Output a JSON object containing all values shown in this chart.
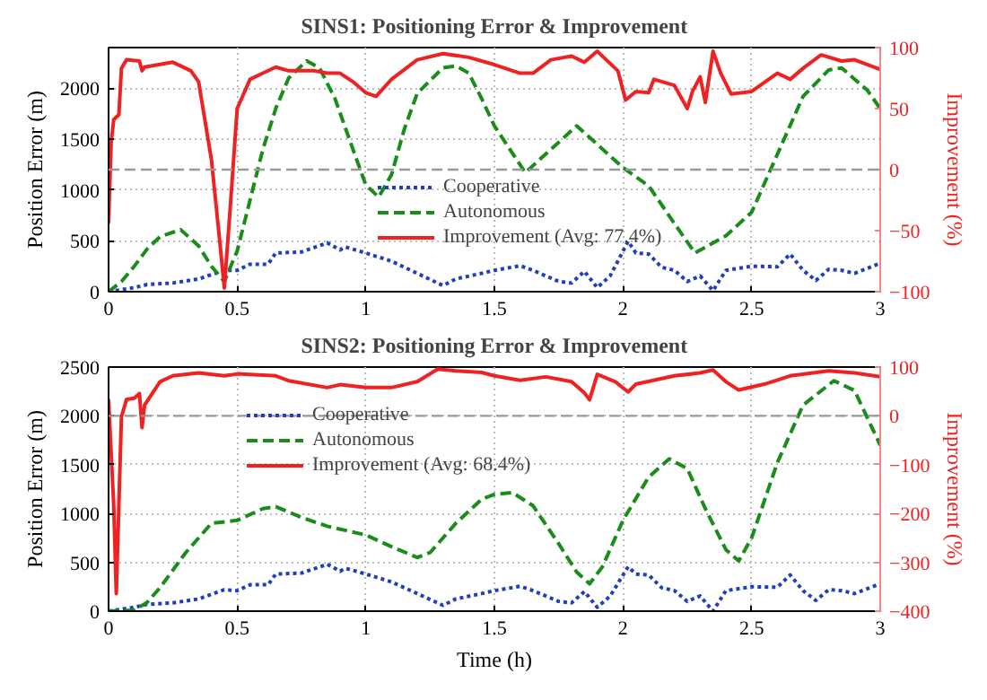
{
  "chart_data": [
    {
      "type": "line",
      "title": "SINS1: Positioning Error & Improvement",
      "ylabel": "Position Error (m)",
      "y2label": "Improvement (%)",
      "xlim": [
        0,
        3
      ],
      "xticks": [
        0,
        0.5,
        1,
        1.5,
        2,
        2.5,
        3
      ],
      "ylim": [
        0,
        2400
      ],
      "yticks": [
        0,
        500,
        1000,
        1500,
        2000
      ],
      "y2lim": [
        -100,
        100
      ],
      "y2ticks": [
        -100,
        -50,
        0,
        50,
        100
      ],
      "grid": true,
      "legend": "center",
      "ref_lines": [
        {
          "axis": "y2",
          "value": 0,
          "color": "#999999",
          "line_style": "dashed"
        }
      ],
      "series": [
        {
          "name": "Cooperative",
          "color": "#1f3fbf",
          "line_style": "dotted",
          "x": [
            0,
            0.1,
            0.15,
            0.25,
            0.35,
            0.45,
            0.5,
            0.55,
            0.62,
            0.65,
            0.75,
            0.85,
            0.9,
            0.92,
            1.0,
            1.1,
            1.2,
            1.3,
            1.35,
            1.45,
            1.5,
            1.6,
            1.65,
            1.75,
            1.8,
            1.85,
            1.9,
            1.95,
            2.02,
            2.05,
            2.1,
            2.15,
            2.2,
            2.25,
            2.3,
            2.35,
            2.4,
            2.5,
            2.6,
            2.65,
            2.7,
            2.75,
            2.8,
            2.85,
            2.9,
            3.0
          ],
          "values": [
            0,
            40,
            70,
            85,
            125,
            210,
            210,
            270,
            270,
            380,
            390,
            480,
            410,
            440,
            380,
            300,
            180,
            60,
            125,
            180,
            210,
            255,
            210,
            100,
            85,
            200,
            40,
            155,
            495,
            380,
            370,
            240,
            210,
            100,
            155,
            10,
            210,
            250,
            245,
            370,
            210,
            110,
            220,
            210,
            180,
            280
          ]
        },
        {
          "name": "Autonomous",
          "color": "#1a8c1a",
          "line_style": "dashed",
          "x": [
            0,
            0.05,
            0.1,
            0.15,
            0.2,
            0.28,
            0.35,
            0.4,
            0.45,
            0.5,
            0.55,
            0.6,
            0.65,
            0.7,
            0.77,
            0.82,
            0.88,
            0.95,
            1.0,
            1.05,
            1.1,
            1.15,
            1.2,
            1.3,
            1.35,
            1.4,
            1.45,
            1.5,
            1.62,
            1.82,
            2.0,
            2.1,
            2.2,
            2.28,
            2.4,
            2.5,
            2.6,
            2.7,
            2.8,
            2.85,
            2.95,
            3.0
          ],
          "values": [
            0,
            100,
            250,
            420,
            540,
            610,
            450,
            250,
            100,
            400,
            900,
            1400,
            1800,
            2100,
            2270,
            2200,
            1900,
            1400,
            1050,
            930,
            1150,
            1600,
            1950,
            2200,
            2220,
            2150,
            1900,
            1630,
            1170,
            1630,
            1220,
            1040,
            670,
            380,
            550,
            780,
            1350,
            1920,
            2180,
            2200,
            1980,
            1800
          ]
        },
        {
          "name": "Improvement (Avg: 77.4%)",
          "color": "#ee2222",
          "line_style": "solid",
          "axis": "y2",
          "x": [
            0,
            0.01,
            0.02,
            0.04,
            0.05,
            0.07,
            0.12,
            0.13,
            0.14,
            0.25,
            0.32,
            0.35,
            0.4,
            0.43,
            0.45,
            0.47,
            0.5,
            0.55,
            0.6,
            0.65,
            0.7,
            0.8,
            0.85,
            0.9,
            0.95,
            1.0,
            1.04,
            1.1,
            1.2,
            1.3,
            1.4,
            1.5,
            1.6,
            1.65,
            1.72,
            1.8,
            1.85,
            1.9,
            1.98,
            2.01,
            2.05,
            2.1,
            2.12,
            2.2,
            2.25,
            2.27,
            2.3,
            2.32,
            2.35,
            2.38,
            2.42,
            2.5,
            2.6,
            2.65,
            2.7,
            2.77,
            2.85,
            2.9,
            3.0
          ],
          "values": [
            -44,
            22,
            41,
            45,
            83,
            90,
            89,
            81,
            84,
            88,
            81,
            72,
            8,
            -54,
            -97,
            -40,
            50,
            74,
            79,
            84,
            81,
            81,
            79,
            79,
            72,
            63,
            60,
            74,
            90,
            95,
            92,
            86,
            79,
            79,
            90,
            93,
            88,
            97,
            81,
            57,
            64,
            63,
            74,
            69,
            50,
            64,
            76,
            55,
            97,
            79,
            62,
            64,
            79,
            74,
            83,
            94,
            89,
            90,
            82
          ]
        }
      ]
    },
    {
      "type": "line",
      "title": "SINS2: Positioning Error & Improvement",
      "xlabel": "Time (h)",
      "ylabel": "Position Error (m)",
      "y2label": "Improvement (%)",
      "xlim": [
        0,
        3
      ],
      "xticks": [
        0,
        0.5,
        1,
        1.5,
        2,
        2.5,
        3
      ],
      "ylim": [
        0,
        2500
      ],
      "yticks": [
        0,
        500,
        1000,
        1500,
        2000,
        2500
      ],
      "y2lim": [
        -400,
        100
      ],
      "y2ticks": [
        -400,
        -300,
        -200,
        -100,
        0,
        100
      ],
      "grid": true,
      "legend": "top",
      "ref_lines": [
        {
          "axis": "y2",
          "value": 0,
          "color": "#999999",
          "line_style": "dashed"
        }
      ],
      "series": [
        {
          "name": "Cooperative",
          "color": "#1f3fbf",
          "line_style": "dotted",
          "x": [
            0,
            0.1,
            0.15,
            0.25,
            0.35,
            0.45,
            0.5,
            0.55,
            0.62,
            0.65,
            0.75,
            0.85,
            0.9,
            0.92,
            1.0,
            1.1,
            1.2,
            1.3,
            1.35,
            1.45,
            1.5,
            1.6,
            1.65,
            1.75,
            1.8,
            1.85,
            1.9,
            1.95,
            2.02,
            2.05,
            2.1,
            2.15,
            2.2,
            2.25,
            2.3,
            2.35,
            2.4,
            2.5,
            2.6,
            2.65,
            2.7,
            2.75,
            2.8,
            2.85,
            2.9,
            3.0
          ],
          "values": [
            0,
            40,
            70,
            85,
            125,
            220,
            210,
            270,
            270,
            380,
            390,
            480,
            410,
            440,
            380,
            300,
            180,
            60,
            125,
            180,
            210,
            255,
            210,
            100,
            85,
            200,
            40,
            155,
            455,
            380,
            370,
            240,
            210,
            100,
            155,
            0,
            210,
            250,
            245,
            370,
            210,
            110,
            220,
            210,
            180,
            280
          ]
        },
        {
          "name": "Autonomous",
          "color": "#1a8c1a",
          "line_style": "dashed",
          "x": [
            0,
            0.1,
            0.15,
            0.2,
            0.3,
            0.4,
            0.5,
            0.6,
            0.65,
            0.75,
            0.85,
            1.0,
            1.1,
            1.2,
            1.25,
            1.35,
            1.45,
            1.5,
            1.57,
            1.65,
            1.75,
            1.82,
            1.87,
            1.92,
            2.0,
            2.1,
            2.18,
            2.25,
            2.32,
            2.4,
            2.45,
            2.5,
            2.6,
            2.7,
            2.82,
            2.9,
            3.0
          ],
          "values": [
            0,
            10,
            90,
            240,
            600,
            900,
            930,
            1050,
            1070,
            960,
            870,
            780,
            660,
            550,
            600,
            900,
            1145,
            1195,
            1215,
            1080,
            690,
            400,
            280,
            455,
            930,
            1375,
            1560,
            1460,
            1050,
            630,
            515,
            750,
            1520,
            2110,
            2360,
            2260,
            1700
          ]
        },
        {
          "name": "Improvement (Avg: 68.4%)",
          "color": "#ee2222",
          "line_style": "solid",
          "axis": "y2",
          "x": [
            0,
            0.02,
            0.03,
            0.04,
            0.05,
            0.07,
            0.1,
            0.12,
            0.13,
            0.14,
            0.2,
            0.25,
            0.35,
            0.45,
            0.5,
            0.65,
            0.7,
            0.85,
            0.9,
            1.0,
            1.1,
            1.2,
            1.28,
            1.35,
            1.45,
            1.5,
            1.6,
            1.7,
            1.8,
            1.85,
            1.87,
            1.9,
            1.97,
            2.02,
            2.05,
            2.2,
            2.3,
            2.35,
            2.4,
            2.45,
            2.55,
            2.65,
            2.8,
            2.9,
            3.0
          ],
          "values": [
            34,
            -183,
            -364,
            -183,
            -2,
            34,
            36,
            46,
            -24,
            22,
            70,
            82,
            88,
            82,
            86,
            82,
            72,
            58,
            64,
            58,
            58,
            70,
            96,
            92,
            89,
            82,
            73,
            80,
            70,
            47,
            33,
            85,
            70,
            49,
            65,
            82,
            88,
            94,
            70,
            53,
            65,
            82,
            92,
            88,
            80
          ]
        }
      ]
    }
  ]
}
